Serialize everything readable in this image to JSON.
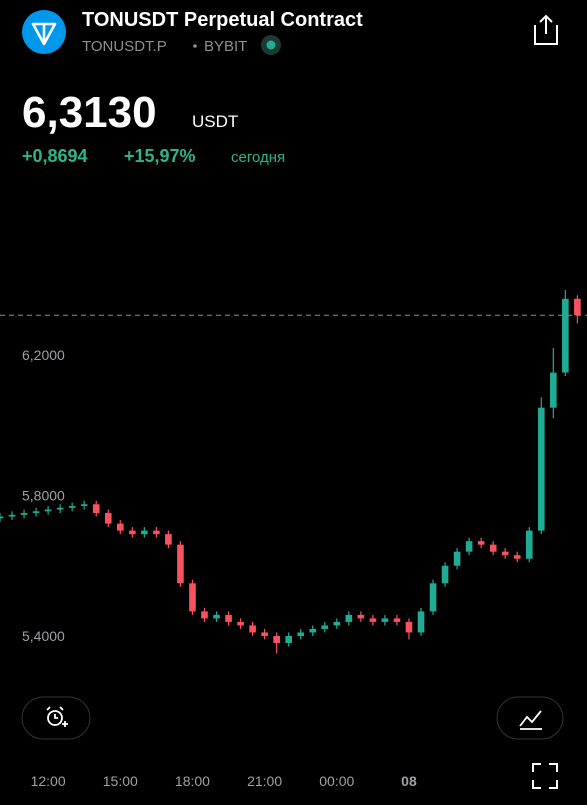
{
  "header": {
    "title": "TONUSDT Perpetual Contract",
    "symbol": "TONUSDT.P",
    "exchange": "BYBIT",
    "price": "6,3130",
    "currency": "USDT",
    "change": "+0,8694",
    "change_percent": "+15,97%",
    "period": "сегодня"
  },
  "chart_data": {
    "type": "candlestick",
    "x": [
      10,
      10.5,
      11,
      11.5,
      12,
      12.5,
      13,
      13.5,
      14,
      14.5,
      15,
      15.5,
      16,
      16.5,
      17,
      17.5,
      18,
      18.5,
      19,
      19.5,
      20,
      20.5,
      21,
      21.5,
      22,
      22.5,
      23,
      23.5,
      24,
      24.5,
      25,
      25.5,
      26,
      26.5,
      27,
      27.5,
      28,
      28.5,
      29,
      29.5,
      30,
      30.5,
      31,
      31.5,
      32,
      32.5,
      33,
      33.5,
      34
    ],
    "open": [
      5.735,
      5.74,
      5.745,
      5.75,
      5.755,
      5.76,
      5.765,
      5.77,
      5.775,
      5.75,
      5.72,
      5.7,
      5.69,
      5.7,
      5.69,
      5.66,
      5.55,
      5.47,
      5.45,
      5.46,
      5.44,
      5.43,
      5.41,
      5.4,
      5.38,
      5.4,
      5.41,
      5.42,
      5.43,
      5.44,
      5.46,
      5.45,
      5.44,
      5.45,
      5.44,
      5.41,
      5.47,
      5.55,
      5.6,
      5.64,
      5.67,
      5.66,
      5.64,
      5.63,
      5.62,
      5.7,
      6.05,
      6.15,
      6.36
    ],
    "high": [
      5.75,
      5.755,
      5.76,
      5.765,
      5.77,
      5.775,
      5.78,
      5.785,
      5.785,
      5.76,
      5.73,
      5.71,
      5.71,
      5.71,
      5.7,
      5.67,
      5.56,
      5.48,
      5.47,
      5.47,
      5.45,
      5.44,
      5.42,
      5.41,
      5.41,
      5.42,
      5.43,
      5.44,
      5.45,
      5.47,
      5.47,
      5.46,
      5.46,
      5.46,
      5.45,
      5.48,
      5.56,
      5.61,
      5.65,
      5.68,
      5.68,
      5.67,
      5.65,
      5.64,
      5.71,
      6.08,
      6.22,
      6.385,
      6.37
    ],
    "low": [
      5.725,
      5.73,
      5.735,
      5.74,
      5.745,
      5.75,
      5.755,
      5.76,
      5.74,
      5.71,
      5.69,
      5.68,
      5.68,
      5.68,
      5.65,
      5.54,
      5.46,
      5.44,
      5.44,
      5.43,
      5.42,
      5.4,
      5.39,
      5.35,
      5.37,
      5.39,
      5.4,
      5.41,
      5.42,
      5.43,
      5.44,
      5.43,
      5.43,
      5.43,
      5.39,
      5.4,
      5.46,
      5.54,
      5.59,
      5.63,
      5.65,
      5.63,
      5.62,
      5.61,
      5.61,
      5.69,
      6.02,
      6.14,
      6.29
    ],
    "close": [
      5.74,
      5.745,
      5.75,
      5.755,
      5.76,
      5.765,
      5.77,
      5.775,
      5.75,
      5.72,
      5.7,
      5.69,
      5.7,
      5.69,
      5.66,
      5.55,
      5.47,
      5.45,
      5.46,
      5.44,
      5.43,
      5.41,
      5.4,
      5.38,
      5.4,
      5.41,
      5.42,
      5.43,
      5.44,
      5.46,
      5.45,
      5.44,
      5.45,
      5.44,
      5.41,
      5.47,
      5.55,
      5.6,
      5.64,
      5.67,
      5.66,
      5.64,
      5.63,
      5.62,
      5.7,
      6.05,
      6.15,
      6.36,
      6.313
    ],
    "up_color": "#22ab94",
    "down_color": "#f7525f",
    "last_price": 6.313,
    "xlim": [
      10,
      34.4
    ],
    "xticks": [
      {
        "value": 12,
        "label": "12:00"
      },
      {
        "value": 15,
        "label": "15:00"
      },
      {
        "value": 18,
        "label": "18:00"
      },
      {
        "value": 21,
        "label": "21:00"
      },
      {
        "value": 24,
        "label": "00:00"
      },
      {
        "value": 27,
        "label": "08"
      }
    ],
    "ylim": [
      5.22,
      6.64
    ],
    "yticks": [
      {
        "value": 5.4,
        "label": "5,4000"
      },
      {
        "value": 5.8,
        "label": "5,8000"
      },
      {
        "value": 6.2,
        "label": "6,2000"
      }
    ]
  }
}
